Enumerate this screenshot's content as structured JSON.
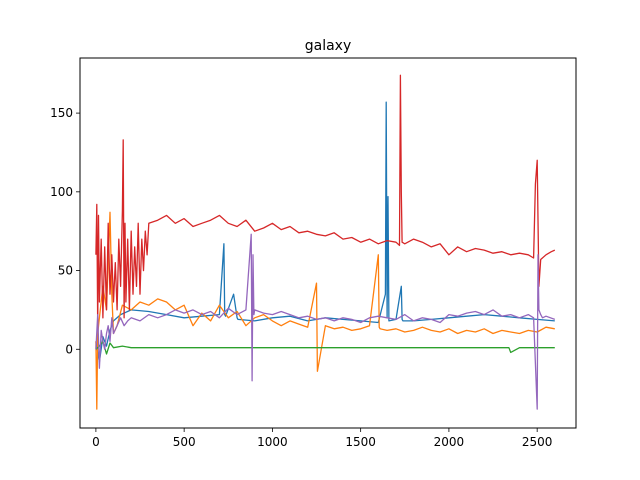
{
  "chart_data": {
    "type": "line",
    "title": "galaxy",
    "xlabel": "",
    "ylabel": "",
    "xlim": [
      -90,
      2720
    ],
    "ylim": [
      -50,
      185
    ],
    "grid": false,
    "legend": "none",
    "xticks": [
      0,
      500,
      1000,
      1500,
      2000,
      2500
    ],
    "yticks": [
      0,
      50,
      100,
      150
    ],
    "series": [
      {
        "color": "#1f77b4",
        "x": [
          0,
          20,
          40,
          60,
          80,
          100,
          140,
          200,
          300,
          400,
          500,
          600,
          700,
          725,
          730,
          735,
          780,
          800,
          805,
          900,
          1000,
          1100,
          1200,
          1300,
          1400,
          1500,
          1600,
          1640,
          1645,
          1650,
          1655,
          1660,
          1700,
          1730,
          1735,
          1740,
          1800,
          1900,
          2000,
          2100,
          2200,
          2300,
          2400,
          2500,
          2600
        ],
        "values": [
          5,
          -8,
          8,
          2,
          12,
          18,
          22,
          25,
          24,
          22,
          20,
          21,
          22,
          67,
          22,
          21,
          35,
          20,
          19,
          18,
          20,
          21,
          18,
          20,
          19,
          18,
          17,
          35,
          157,
          20,
          97,
          18,
          19,
          40,
          19,
          18,
          18,
          19,
          20,
          21,
          22,
          21,
          20,
          19,
          18
        ]
      },
      {
        "color": "#ff7f0e",
        "x": [
          0,
          5,
          10,
          20,
          40,
          60,
          80,
          90,
          100,
          120,
          150,
          200,
          250,
          300,
          350,
          400,
          450,
          500,
          550,
          600,
          650,
          700,
          750,
          800,
          850,
          900,
          950,
          1000,
          1050,
          1100,
          1150,
          1200,
          1250,
          1255,
          1300,
          1350,
          1400,
          1450,
          1500,
          1550,
          1600,
          1605,
          1610,
          1650,
          1700,
          1750,
          1800,
          1850,
          1900,
          1950,
          2000,
          2050,
          2100,
          2150,
          2200,
          2250,
          2300,
          2350,
          2400,
          2450,
          2500,
          2550,
          2600
        ],
        "values": [
          5,
          -38,
          10,
          20,
          40,
          25,
          87,
          35,
          10,
          15,
          28,
          25,
          30,
          28,
          32,
          30,
          25,
          28,
          15,
          23,
          18,
          28,
          20,
          24,
          15,
          20,
          22,
          18,
          15,
          18,
          16,
          14,
          42,
          -14,
          15,
          13,
          14,
          12,
          13,
          15,
          60,
          14,
          13,
          12,
          13,
          11,
          12,
          14,
          12,
          11,
          13,
          10,
          12,
          11,
          13,
          10,
          12,
          11,
          10,
          12,
          11,
          14,
          13
        ]
      },
      {
        "color": "#2ca02c",
        "x": [
          0,
          20,
          40,
          60,
          80,
          100,
          150,
          200,
          400,
          600,
          800,
          1000,
          1200,
          1400,
          1600,
          1800,
          2000,
          2200,
          2340,
          2350,
          2400,
          2600
        ],
        "values": [
          0,
          2,
          5,
          -3,
          4,
          1,
          2,
          1,
          1,
          1,
          1,
          1,
          1,
          1,
          1,
          1,
          1,
          1,
          1,
          -2,
          1,
          1
        ]
      },
      {
        "color": "#d62728",
        "x": [
          0,
          5,
          10,
          15,
          20,
          30,
          40,
          50,
          60,
          70,
          80,
          90,
          100,
          110,
          120,
          130,
          140,
          150,
          155,
          160,
          165,
          170,
          180,
          190,
          200,
          210,
          220,
          230,
          240,
          250,
          260,
          270,
          280,
          290,
          300,
          350,
          400,
          450,
          500,
          550,
          600,
          650,
          700,
          750,
          800,
          850,
          900,
          950,
          1000,
          1050,
          1100,
          1150,
          1200,
          1250,
          1300,
          1350,
          1400,
          1450,
          1500,
          1550,
          1600,
          1650,
          1700,
          1720,
          1725,
          1730,
          1735,
          1750,
          1800,
          1850,
          1900,
          1950,
          2000,
          2050,
          2100,
          2150,
          2200,
          2250,
          2300,
          2350,
          2400,
          2450,
          2480,
          2490,
          2500,
          2510,
          2520,
          2550,
          2580,
          2600
        ],
        "values": [
          60,
          92,
          15,
          85,
          30,
          70,
          20,
          65,
          25,
          80,
          35,
          60,
          30,
          55,
          25,
          70,
          40,
          88,
          133,
          20,
          80,
          30,
          70,
          25,
          75,
          35,
          65,
          40,
          80,
          35,
          70,
          50,
          75,
          60,
          80,
          82,
          85,
          80,
          83,
          78,
          80,
          82,
          85,
          80,
          78,
          82,
          75,
          77,
          80,
          76,
          78,
          74,
          75,
          73,
          72,
          74,
          70,
          71,
          68,
          70,
          67,
          69,
          68,
          66,
          174,
          100,
          68,
          67,
          70,
          68,
          65,
          67,
          60,
          65,
          62,
          64,
          63,
          61,
          62,
          60,
          61,
          60,
          58,
          105,
          120,
          40,
          57,
          60,
          62,
          63
        ]
      },
      {
        "color": "#9467bd",
        "x": [
          0,
          10,
          20,
          30,
          40,
          50,
          60,
          70,
          80,
          90,
          100,
          120,
          140,
          160,
          180,
          200,
          250,
          300,
          350,
          400,
          450,
          500,
          550,
          600,
          650,
          700,
          750,
          800,
          850,
          880,
          885,
          890,
          895,
          900,
          950,
          1000,
          1050,
          1100,
          1150,
          1200,
          1250,
          1300,
          1350,
          1400,
          1450,
          1500,
          1550,
          1600,
          1650,
          1700,
          1750,
          1800,
          1850,
          1900,
          1950,
          2000,
          2050,
          2100,
          2150,
          2200,
          2250,
          2300,
          2350,
          2400,
          2450,
          2480,
          2500,
          2505,
          2510,
          2520,
          2530,
          2550,
          2600
        ],
        "values": [
          0,
          22,
          -12,
          12,
          5,
          0,
          10,
          15,
          5,
          20,
          10,
          15,
          20,
          15,
          18,
          20,
          18,
          22,
          20,
          22,
          25,
          23,
          25,
          22,
          24,
          20,
          26,
          22,
          25,
          73,
          -20,
          60,
          22,
          25,
          23,
          22,
          24,
          22,
          20,
          21,
          19,
          20,
          18,
          20,
          19,
          17,
          20,
          21,
          20,
          19,
          22,
          18,
          20,
          19,
          17,
          22,
          21,
          23,
          24,
          22,
          25,
          21,
          22,
          20,
          22,
          20,
          -38,
          60,
          25,
          22,
          20,
          21,
          19
        ]
      }
    ]
  }
}
